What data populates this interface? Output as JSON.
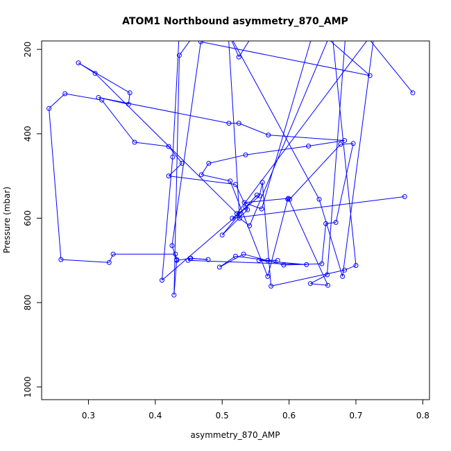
{
  "chart_data": {
    "type": "line",
    "title": "ATOM1 Northbound asymmetry_870_AMP",
    "xlabel": "asymmetry_870_AMP",
    "ylabel": "Pressure (mbar)",
    "xlim": [
      0.23,
      0.81
    ],
    "ylim": [
      1030,
      180
    ],
    "y_inverted": true,
    "grid": false,
    "line_color": "#0000ff",
    "xticks": [
      0.3,
      0.4,
      0.5,
      0.6,
      0.7,
      0.8
    ],
    "xtick_labels": [
      "0.3",
      "0.4",
      "0.5",
      "0.6",
      "0.7",
      "0.8"
    ],
    "yticks": [
      200,
      400,
      600,
      800,
      1000
    ],
    "ytick_labels": [
      "200",
      "400",
      "600",
      "800",
      "1000"
    ],
    "series": [
      {
        "x": [
          0.785,
          0.709,
          0.602,
          0.512,
          0.567,
          0.694,
          0.654,
          0.644,
          0.721,
          0.468,
          0.425,
          0.432,
          0.428,
          0.436,
          0.479,
          0.502,
          0.509,
          0.526,
          0.541,
          0.664,
          0.7,
          0.683,
          0.573,
          0.56,
          0.556,
          0.41,
          0.426,
          0.436,
          0.413,
          0.629,
          0.657,
          0.685,
          0.657,
          0.632,
          0.658,
          0.599,
          0.533,
          0.559,
          0.636,
          0.664,
          0.71,
          0.552,
          0.525,
          0.506,
          0.645,
          0.68,
          0.728,
          0.522,
          0.31,
          0.285,
          0.362,
          0.36,
          0.315,
          0.51,
          0.525,
          0.569,
          0.683,
          0.629,
          0.535,
          0.48,
          0.469,
          0.512,
          0.568,
          0.598,
          0.601,
          0.677,
          0.696,
          0.67,
          0.655,
          0.649,
          0.592,
          0.532,
          0.496,
          0.52,
          0.568,
          0.583,
          0.555,
          0.626,
          0.449,
          0.452,
          0.479,
          0.453,
          0.432,
          0.43,
          0.337,
          0.331,
          0.259,
          0.241,
          0.265,
          0.32,
          0.369,
          0.42,
          0.44,
          0.42,
          0.52,
          0.538,
          0.5,
          0.526,
          0.552,
          0.535,
          0.515,
          0.773
        ],
        "y": [
          303,
          155,
          155,
          160,
          155,
          155,
          155,
          155,
          262,
          182,
          665,
          698,
          782,
          214,
          120,
          155,
          159,
          600,
          618,
          155,
          712,
          723,
          761,
          515,
          547,
          747,
          455,
          155,
          160,
          157,
          155,
          155,
          734,
          755,
          759,
          553,
          563,
          578,
          160,
          155,
          155,
          150,
          218,
          150,
          555,
          738,
          155,
          589,
          257,
          232,
          303,
          330,
          314,
          375,
          375,
          403,
          416,
          429,
          450,
          470,
          497,
          512,
          738,
          555,
          555,
          425,
          423,
          610,
          613,
          708,
          711,
          685,
          716,
          690,
          700,
          700,
          700,
          710,
          700,
          695,
          698,
          695,
          700,
          685,
          685,
          705,
          698,
          340,
          305,
          320,
          420,
          430,
          470,
          500,
          520,
          580,
          640,
          590,
          545,
          575,
          600,
          549
        ]
      }
    ]
  }
}
